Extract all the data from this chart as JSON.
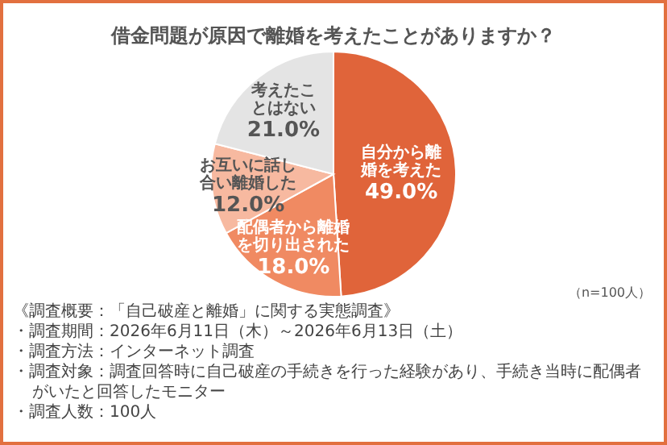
{
  "chart_data": {
    "type": "pie",
    "title": "借金問題が原因で離婚を考えたことがありますか？",
    "categories": [
      "自分から離婚を考えた",
      "配偶者から離婚を切り出された",
      "お互いに話し合い離婚した",
      "考えたことはない"
    ],
    "values": [
      49.0,
      18.0,
      12.0,
      21.0
    ],
    "value_labels": [
      "49.0%",
      "18.0%",
      "12.0%",
      "21.0%"
    ],
    "colors": [
      "#e0643a",
      "#f08a62",
      "#f7b9a0",
      "#e4e4e4"
    ],
    "annotations": [
      "（n=100人）",
      "《調査概要：「自己破産と離婚」に関する実態調査》",
      "・調査期間：2026年6月11日（木）～2026年6月13日（土）",
      "・調査方法：インターネット調査",
      "・調査対象：調査回答時に自己破産の手続きを行った経験があり、手続き当時に配偶者がいたと回答したモニター",
      "・調査人数：100人"
    ]
  }
}
